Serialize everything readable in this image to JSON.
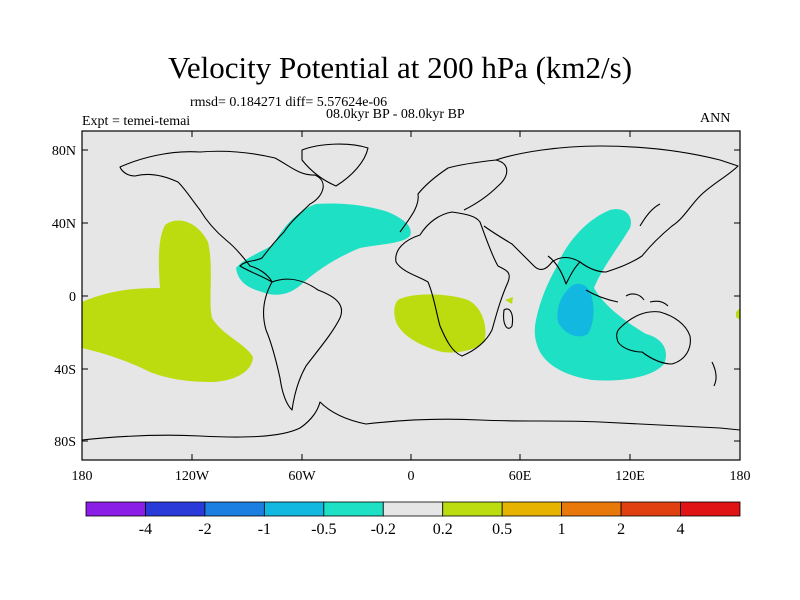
{
  "title": "Velocity Potential at 200 hPa (km2/s)",
  "stats": "rmsd= 0.184271 diff= 5.57624e-06",
  "period": "08.0kyr BP - 08.0kyr BP",
  "experiment": "Expt = temei-temai",
  "season": "ANN",
  "lat_labels": [
    "80N",
    "40N",
    "0",
    "40S",
    "80S"
  ],
  "lon_labels": [
    "180",
    "120W",
    "60W",
    "0",
    "60E",
    "120E",
    "180"
  ],
  "colorbar": {
    "labels": [
      "-4",
      "-2",
      "-1",
      "-0.5",
      "-0.2",
      "0.2",
      "0.5",
      "1",
      "2",
      "4"
    ],
    "colors": [
      "#8a1ee6",
      "#2a3ad8",
      "#1a7fe0",
      "#12b8e0",
      "#1ee0c4",
      "#e6e6e6",
      "#bcdc10",
      "#e6b400",
      "#e8780a",
      "#e04010",
      "#e01414"
    ]
  },
  "colors": {
    "background": "#e6e6e6",
    "positive_weak": "#bcdc10",
    "negative_weak": "#1ee0c4",
    "negative_mid": "#12b8e0"
  }
}
